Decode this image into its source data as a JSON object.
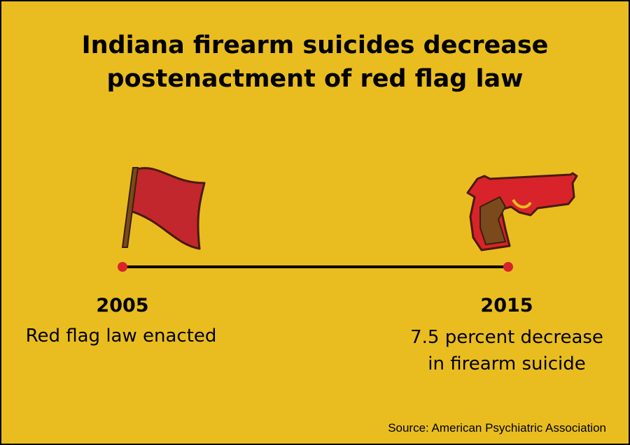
{
  "title": {
    "lines": [
      "Indiana firearm suicides decrease",
      "postenactment of red flag law"
    ]
  },
  "timeline": {
    "events": [
      {
        "year": "2005",
        "description": [
          "Red flag law enacted"
        ]
      },
      {
        "year": "2015",
        "description": [
          "7.5 percent decrease",
          "in firearm suicide"
        ]
      }
    ]
  },
  "source": "Source: American Psychiatric Association"
}
